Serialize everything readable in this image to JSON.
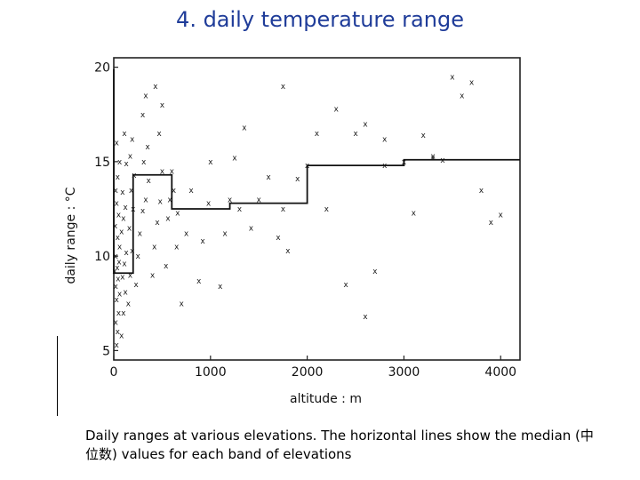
{
  "title": "4. daily temperature range",
  "caption": "Daily ranges at various elevations. The horizontal lines show the median (中位数) values for each band of elevations",
  "chart_data": {
    "type": "scatter",
    "title": "",
    "xlabel": "altitude : m",
    "ylabel": "daily range : °C",
    "xlim": [
      0,
      4200
    ],
    "ylim": [
      4.5,
      20.5
    ],
    "xticks": [
      0,
      1000,
      2000,
      3000,
      4000
    ],
    "xtick_labels": [
      "0",
      "1000",
      "2000",
      "3000",
      "4000"
    ],
    "yticks": [
      5,
      10,
      15,
      20
    ],
    "ytick_labels": [
      "5",
      "10",
      "15",
      "20"
    ],
    "marker": "x",
    "grid": false,
    "points": [
      [
        30,
        5.3
      ],
      [
        40,
        6
      ],
      [
        20,
        6.5
      ],
      [
        50,
        7
      ],
      [
        30,
        7.7
      ],
      [
        60,
        8
      ],
      [
        20,
        8.4
      ],
      [
        45,
        8.8
      ],
      [
        10,
        9.2
      ],
      [
        35,
        9.4
      ],
      [
        55,
        9.7
      ],
      [
        20,
        10
      ],
      [
        60,
        10.5
      ],
      [
        40,
        11
      ],
      [
        15,
        11.6
      ],
      [
        50,
        12.2
      ],
      [
        30,
        12.8
      ],
      [
        20,
        13.5
      ],
      [
        40,
        14.2
      ],
      [
        60,
        15
      ],
      [
        30,
        16
      ],
      [
        80,
        5.8
      ],
      [
        100,
        7
      ],
      [
        120,
        8.1
      ],
      [
        90,
        8.9
      ],
      [
        110,
        9.6
      ],
      [
        130,
        10.2
      ],
      [
        80,
        11.3
      ],
      [
        100,
        12
      ],
      [
        120,
        12.6
      ],
      [
        90,
        13.4
      ],
      [
        130,
        14.9
      ],
      [
        110,
        16.5
      ],
      [
        150,
        7.5
      ],
      [
        170,
        9
      ],
      [
        190,
        10.3
      ],
      [
        160,
        11.5
      ],
      [
        200,
        12.5
      ],
      [
        180,
        13.5
      ],
      [
        210,
        14.3
      ],
      [
        170,
        15.3
      ],
      [
        190,
        16.2
      ],
      [
        230,
        8.5
      ],
      [
        250,
        10
      ],
      [
        270,
        11.2
      ],
      [
        300,
        12.4
      ],
      [
        330,
        13
      ],
      [
        360,
        14
      ],
      [
        310,
        15
      ],
      [
        350,
        15.8
      ],
      [
        300,
        17.5
      ],
      [
        330,
        18.5
      ],
      [
        400,
        9
      ],
      [
        420,
        10.5
      ],
      [
        450,
        11.8
      ],
      [
        480,
        12.9
      ],
      [
        500,
        14.5
      ],
      [
        470,
        16.5
      ],
      [
        500,
        18
      ],
      [
        430,
        19
      ],
      [
        540,
        9.5
      ],
      [
        560,
        12
      ],
      [
        580,
        13
      ],
      [
        620,
        13.5
      ],
      [
        600,
        14.5
      ],
      [
        660,
        12.3
      ],
      [
        700,
        7.5
      ],
      [
        750,
        11.2
      ],
      [
        800,
        13.5
      ],
      [
        880,
        8.7
      ],
      [
        920,
        10.8
      ],
      [
        980,
        12.8
      ],
      [
        1000,
        15
      ],
      [
        1100,
        8.4
      ],
      [
        1150,
        11.2
      ],
      [
        1200,
        13
      ],
      [
        1250,
        15.2
      ],
      [
        1300,
        12.5
      ],
      [
        1350,
        16.8
      ],
      [
        1420,
        11.5
      ],
      [
        1500,
        13
      ],
      [
        1600,
        14.2
      ],
      [
        1700,
        11
      ],
      [
        1750,
        12.5
      ],
      [
        1800,
        10.3
      ],
      [
        1900,
        14.1
      ],
      [
        2000,
        14.8
      ],
      [
        2100,
        16.5
      ],
      [
        2200,
        12.5
      ],
      [
        2300,
        17.8
      ],
      [
        2400,
        8.5
      ],
      [
        2500,
        16.5
      ],
      [
        2600,
        6.8
      ],
      [
        2700,
        9.2
      ],
      [
        2800,
        14.8
      ],
      [
        3000,
        15
      ],
      [
        3100,
        12.3
      ],
      [
        3200,
        16.4
      ],
      [
        3300,
        15.2
      ],
      [
        3400,
        15.1
      ],
      [
        3600,
        18.5
      ],
      [
        3700,
        19.2
      ],
      [
        3800,
        13.5
      ],
      [
        3900,
        11.8
      ],
      [
        4000,
        12.2
      ],
      [
        3500,
        19.5
      ],
      [
        1750,
        19
      ],
      [
        2600,
        17
      ],
      [
        650,
        10.5
      ],
      [
        2800,
        16.2
      ],
      [
        3300,
        15.3
      ]
    ],
    "median_steps": [
      {
        "x_start": 0,
        "x_end": 200,
        "y": 9.1
      },
      {
        "x_start": 200,
        "x_end": 600,
        "y": 14.3
      },
      {
        "x_start": 600,
        "x_end": 1200,
        "y": 12.5
      },
      {
        "x_start": 1200,
        "x_end": 2000,
        "y": 12.8
      },
      {
        "x_start": 2000,
        "x_end": 3000,
        "y": 14.8
      },
      {
        "x_start": 3000,
        "x_end": 4200,
        "y": 15.1
      }
    ],
    "median_step_at_zero": 19.9
  }
}
